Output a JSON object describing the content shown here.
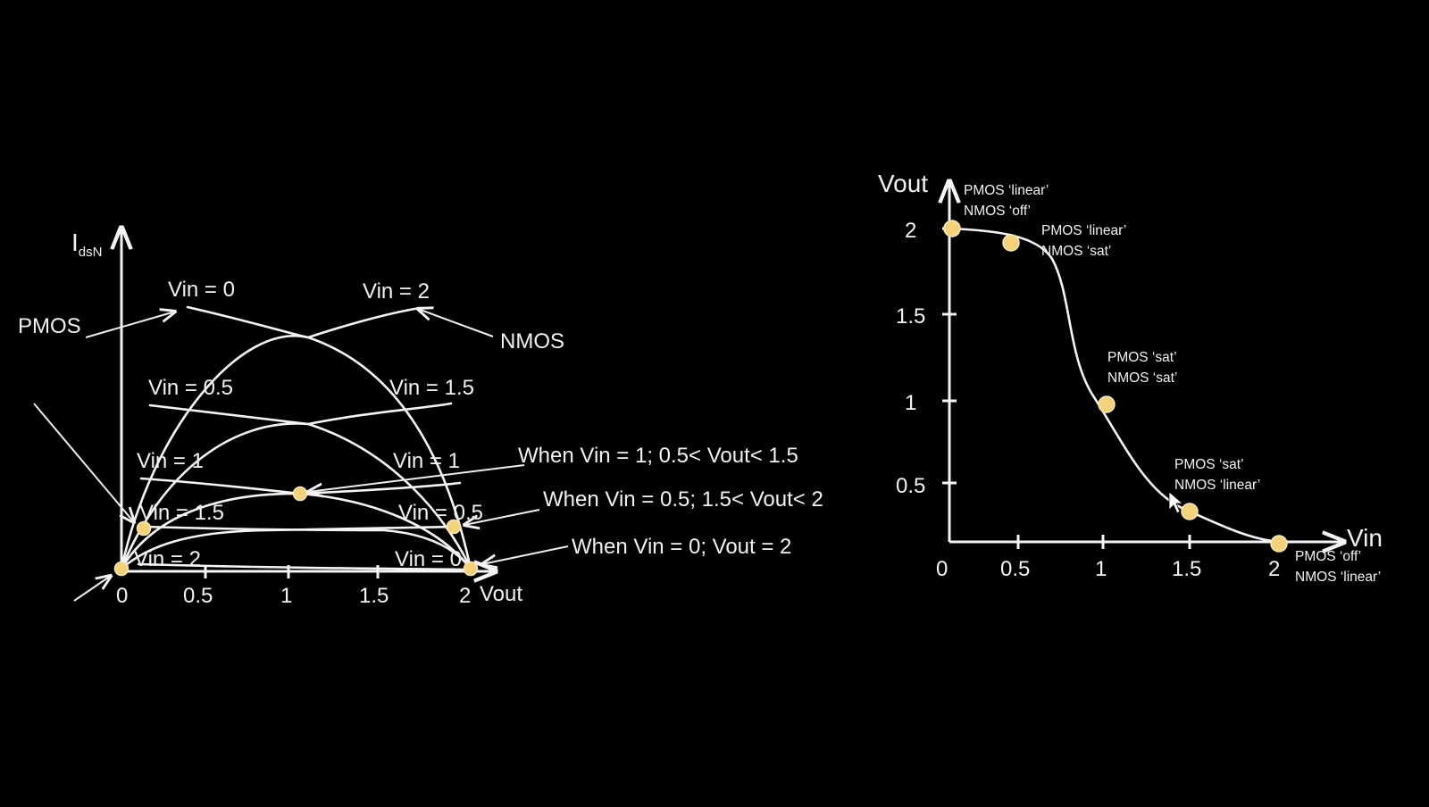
{
  "left_plot": {
    "y_axis_label": "I",
    "y_axis_subscript": "dsN",
    "x_axis_label": "Vout",
    "x_ticks": [
      "0",
      "0.5",
      "1",
      "1.5",
      "2"
    ],
    "device_labels": {
      "pmos": "PMOS",
      "nmos": "NMOS"
    },
    "curve_labels": {
      "p_vin0": "Vin = 0",
      "n_vin2": "Vin = 2",
      "p_vin05": "Vin = 0.5",
      "n_vin15": "Vin = 1.5",
      "p_vin1": "Vin = 1",
      "n_vin1": "Vin = 1",
      "p_vin15": "Vin = 1.5",
      "n_vin05": "Vin = 0.5",
      "p_vin2": "Vin = 2",
      "n_vin0": "Vin = 0"
    },
    "annotations": {
      "vin1": "When Vin = 1; 0.5< Vout< 1.5",
      "vin05": "When Vin = 0.5; 1.5< Vout< 2",
      "vin0": "When Vin = 0; Vout = 2"
    },
    "colors": {
      "operating_point": "#f3d27a",
      "curves": "#f4f4f4",
      "background": "#000000"
    }
  },
  "right_plot": {
    "y_axis_label": "Vout",
    "x_axis_label": "Vin",
    "x_ticks": [
      "0",
      "0.5",
      "1",
      "1.5",
      "2"
    ],
    "y_ticks": [
      "0.5",
      "1",
      "1.5",
      "2"
    ],
    "region_labels": [
      {
        "line1": "PMOS ‘linear’",
        "line2": "NMOS ‘off’"
      },
      {
        "line1": "PMOS ‘linear’",
        "line2": "NMOS ‘sat’"
      },
      {
        "line1": "PMOS ‘sat’",
        "line2": "NMOS ‘sat’"
      },
      {
        "line1": "PMOS ‘sat’",
        "line2": "NMOS ‘linear’"
      },
      {
        "line1": "PMOS ‘off’",
        "line2": "NMOS ‘linear’"
      }
    ],
    "vtc_points": [
      {
        "vin": 0,
        "vout": 2
      },
      {
        "vin": 0.35,
        "vout": 1.93
      },
      {
        "vin": 1.0,
        "vout": 1.0
      },
      {
        "vin": 1.55,
        "vout": 0.18
      },
      {
        "vin": 2.0,
        "vout": 0
      }
    ]
  }
}
